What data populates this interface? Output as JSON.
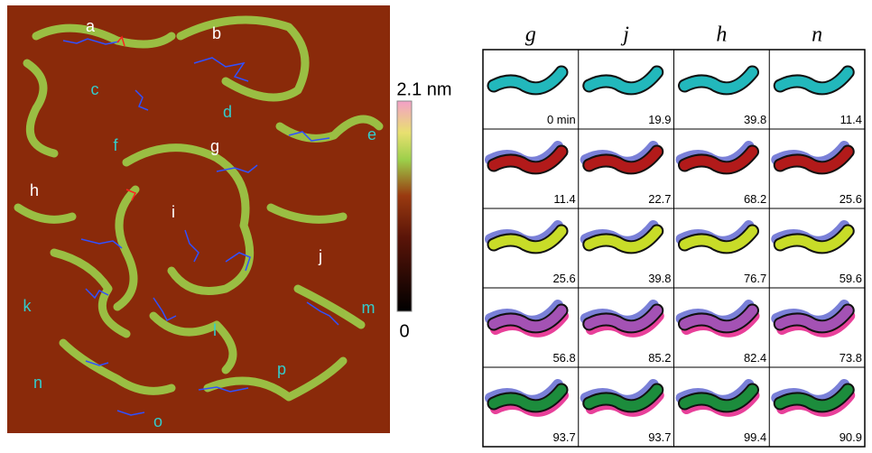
{
  "image_labels": [
    "a",
    "b",
    "c",
    "d",
    "e",
    "f",
    "g",
    "h",
    "i",
    "j",
    "k",
    "l",
    "m",
    "n",
    "o",
    "p"
  ],
  "colorbar": {
    "max_label": "2.1 nm",
    "min_label": "0"
  },
  "panel": {
    "columns": [
      "g",
      "j",
      "h",
      "n"
    ],
    "rows": [
      [
        "0 min",
        "19.9",
        "39.8",
        "11.4"
      ],
      [
        "11.4",
        "22.7",
        "68.2",
        "25.6"
      ],
      [
        "25.6",
        "39.8",
        "76.7",
        "59.6"
      ],
      [
        "56.8",
        "85.2",
        "82.4",
        "73.8"
      ],
      [
        "93.7",
        "93.7",
        "99.4",
        "90.9"
      ]
    ]
  }
}
